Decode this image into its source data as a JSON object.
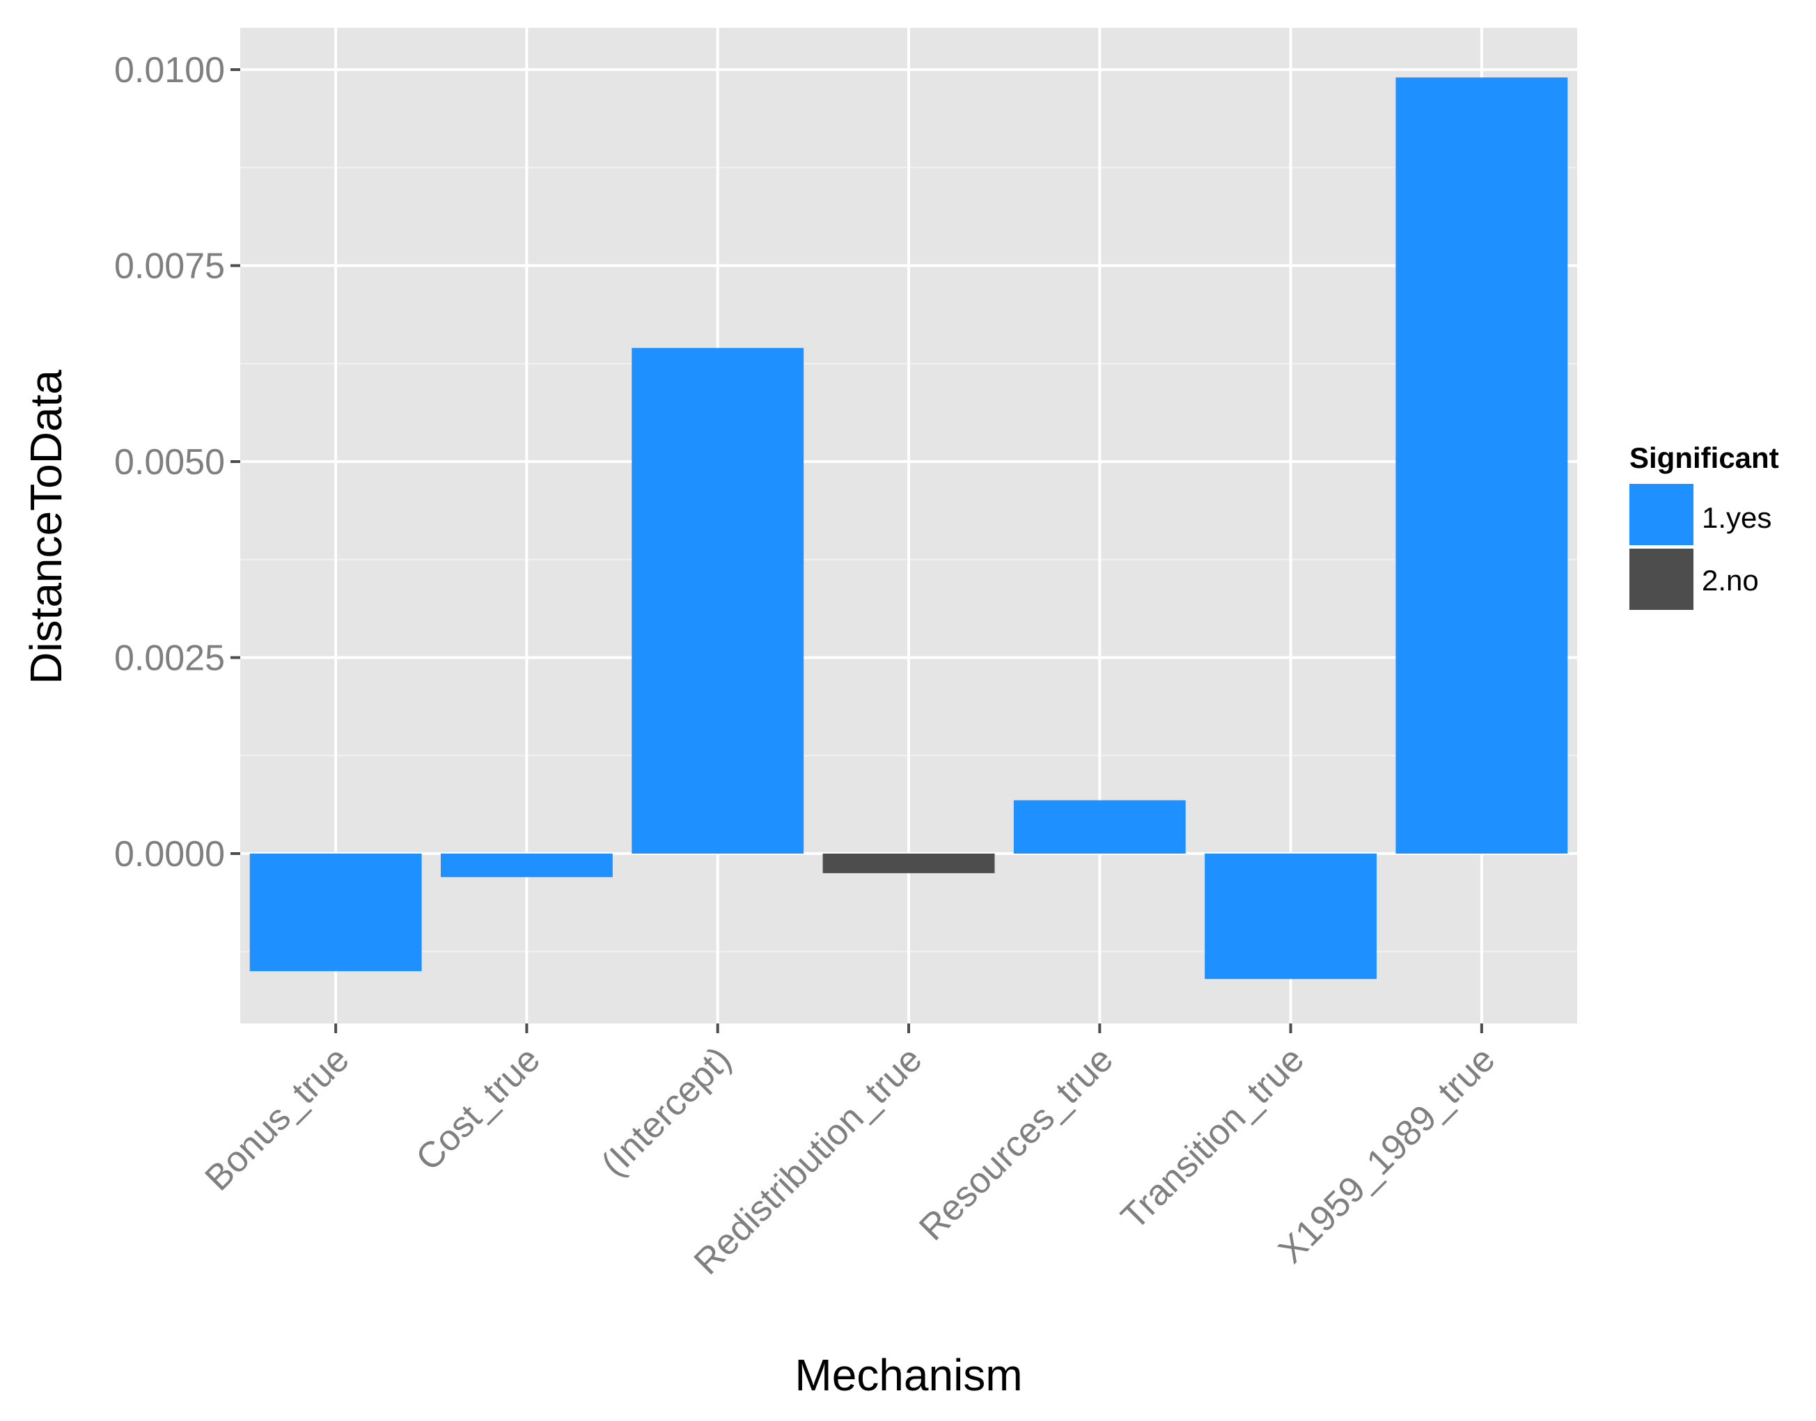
{
  "chart_data": {
    "type": "bar",
    "title": "",
    "xlabel": "Mechanism",
    "ylabel": "DistanceToData",
    "ylim": [
      -0.0022,
      0.0105
    ],
    "yticks": [
      0.0,
      0.0025,
      0.005,
      0.0075,
      0.01
    ],
    "ytick_labels": [
      "0.0000",
      "0.0025",
      "0.0050",
      "0.0075",
      "0.0100"
    ],
    "categories": [
      "Bonus_true",
      "Cost_true",
      "(Intercept)",
      "Redistribution_true",
      "Resources_true",
      "Transition_true",
      "X1959_1989_true"
    ],
    "values": [
      -0.0015,
      -0.0003,
      0.00645,
      -0.00025,
      0.00068,
      -0.0016,
      0.0099
    ],
    "significant": [
      "1.yes",
      "1.yes",
      "1.yes",
      "2.no",
      "1.yes",
      "1.yes",
      "1.yes"
    ],
    "grid": true,
    "legend": {
      "title": "Significant",
      "position": "right",
      "entries": [
        {
          "label": "1.yes",
          "color": "#1E90FF"
        },
        {
          "label": "2.no",
          "color": "#4D4D4D"
        }
      ]
    },
    "colors": {
      "panel_background": "#E5E5E5",
      "gridline": "#FFFFFF",
      "tick_text": "#7F7F7F"
    }
  }
}
